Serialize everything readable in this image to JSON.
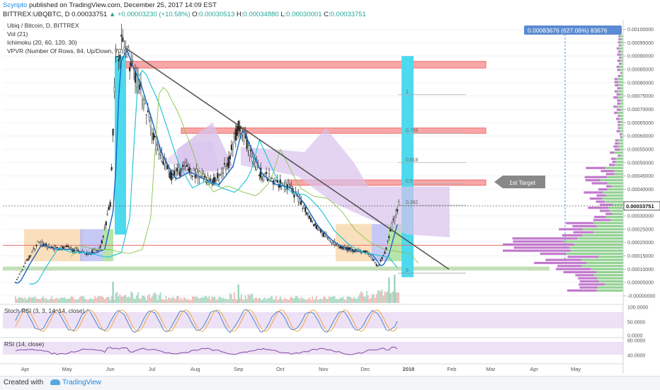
{
  "header": {
    "author": "Scyripto",
    "published_text": "published on TradingView.com, December 25, 2017 14:09 EST",
    "symbol": "BITTREX:UBQBTC, D",
    "last_price": "0.00033751",
    "change": "▲ +0.00003230 (+10.58%)",
    "o_label": "O:",
    "o_value": "0.00030513",
    "h_label": "H:",
    "h_value": "0.00034880",
    "l_label": "L:",
    "l_value": "0.00030001",
    "c_label": "C:",
    "c_value": "0.00033751"
  },
  "legend": {
    "title": "Ubiq / Bitcoin, D, BITTREX",
    "vol": "Vol (21)",
    "ichimoku": "Ichimoku (20, 60, 120, 30)",
    "vpvr": "VPVR (Number Of Rows, 84, Up/Down, 70)"
  },
  "panes": {
    "stoch_label": "Stoch RSI (3, 3, 14, 14, close)",
    "rsi_label": "RSI (14, close)"
  },
  "colors": {
    "up": "#26a69a",
    "down": "#ef5350",
    "accent": "#1e88e5",
    "cyan_band": "#4dd9ee",
    "resistance": "#f26b6b",
    "support": "#9fcc8a",
    "cloud": "#d8c2ec",
    "trendline": "#555555",
    "vpvr_up": "#7fc97f",
    "vpvr_down": "#b763c4"
  },
  "chart_data": {
    "type": "candlestick",
    "symbol": "UBQBTC",
    "y_axis": {
      "ticks": [
        "0.00100000",
        "0.00095000",
        "0.00090000",
        "0.00085000",
        "0.00080000",
        "0.00075000",
        "0.00070000",
        "0.00065000",
        "0.00060000",
        "0.00055000",
        "0.00050000",
        "0.00045000",
        "0.00040000",
        "0.00030000",
        "0.00025000",
        "0.00020000",
        "0.00015000",
        "0.00010000",
        "0.00005000",
        "-0.00000000"
      ],
      "last_price_label": "0.00033751",
      "range": [
        0,
        0.00102
      ]
    },
    "x_axis": {
      "ticks": [
        "Apr",
        "May",
        "Jun",
        "Jul",
        "Aug",
        "Sep",
        "Oct",
        "Nov",
        "Dec",
        "2018",
        "Feb",
        "Mar",
        "Apr",
        "May"
      ]
    },
    "price_path": [
      [
        "Mar 25",
        5e-05
      ],
      [
        "Apr 1",
        0.00012
      ],
      [
        "Apr 10",
        0.0002
      ],
      [
        "Apr 20",
        0.00018
      ],
      [
        "May 1",
        0.00018
      ],
      [
        "May 15",
        0.00016
      ],
      [
        "May 25",
        0.00018
      ],
      [
        "Jun 1",
        0.00035
      ],
      [
        "Jun 5",
        0.0009
      ],
      [
        "Jun 10",
        0.00095
      ],
      [
        "Jun 15",
        0.00088
      ],
      [
        "Jun 20",
        0.00082
      ],
      [
        "Jun 28",
        0.00068
      ],
      [
        "Jul 5",
        0.00055
      ],
      [
        "Jul 15",
        0.00045
      ],
      [
        "Jul 25",
        0.00048
      ],
      [
        "Aug 5",
        0.00045
      ],
      [
        "Aug 15",
        0.00043
      ],
      [
        "Aug 25",
        0.0005
      ],
      [
        "Sep 1",
        0.00065
      ],
      [
        "Sep 8",
        0.00056
      ],
      [
        "Sep 15",
        0.00047
      ],
      [
        "Sep 25",
        0.00043
      ],
      [
        "Oct 5",
        0.00042
      ],
      [
        "Oct 15",
        0.00036
      ],
      [
        "Oct 25",
        0.00027
      ],
      [
        "Nov 5",
        0.00021
      ],
      [
        "Nov 15",
        0.00018
      ],
      [
        "Nov 25",
        0.00017
      ],
      [
        "Dec 3",
        0.00016
      ],
      [
        "Dec 10",
        0.00011
      ],
      [
        "Dec 15",
        0.00016
      ],
      [
        "Dec 20",
        0.00026
      ],
      [
        "Dec 25",
        0.00034
      ]
    ],
    "fibonacci": [
      {
        "level": "1",
        "price": 0.000755
      },
      {
        "level": "0.786",
        "price": 0.00061
      },
      {
        "level": "0.618",
        "price": 0.0005
      },
      {
        "level": "0.5",
        "price": 0.00042
      },
      {
        "level": "0.382",
        "price": 0.00034
      },
      {
        "level": "0",
        "price": 8.5e-05
      }
    ],
    "zones": {
      "resistance": [
        {
          "from": 0.000855,
          "to": 0.00088
        },
        {
          "from": 0.00061,
          "to": 0.00063
        },
        {
          "from": 0.000415,
          "to": 0.000435
        }
      ],
      "support": {
        "from": 9.5e-05,
        "to": 0.00011
      }
    },
    "trendline": {
      "from": [
        "Jun 12",
        0.00093
      ],
      "to": [
        "Jan 7",
        0.0001
      ]
    },
    "measure": {
      "label": "0.00083676 (627.06%) 83676"
    },
    "annotation": {
      "label": "1st Target"
    },
    "stoch_rsi": {
      "ticks": [
        "100.0000",
        "50.0000",
        "0.0000"
      ]
    },
    "rsi": {
      "ticks": [
        "80.0000",
        "40.0000"
      ]
    }
  },
  "footer": {
    "created_with": "Created with",
    "brand": "TradingView"
  }
}
